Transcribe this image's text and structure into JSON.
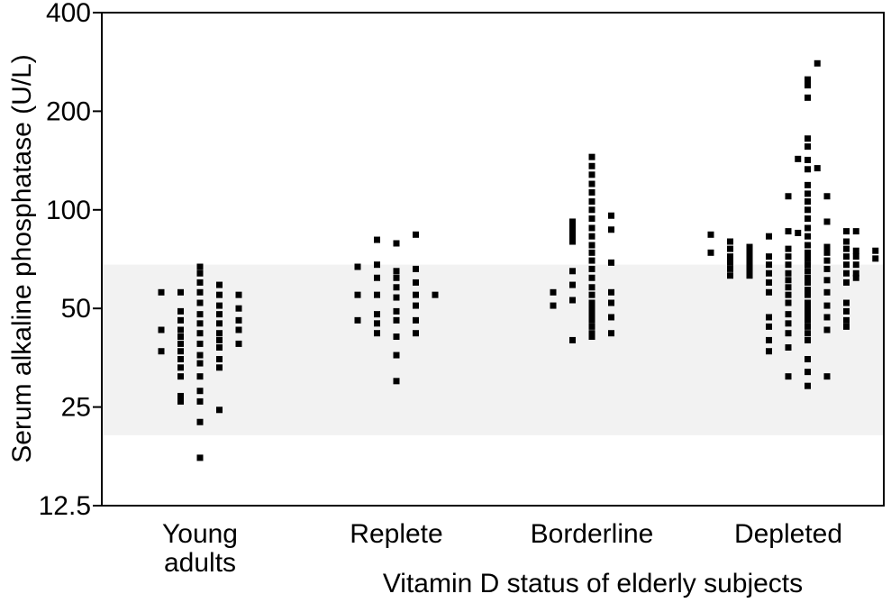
{
  "chart_data": {
    "type": "scatter",
    "y_scale": "log2",
    "ylim": [
      12.5,
      400
    ],
    "yticks": [
      12.5,
      25,
      50,
      100,
      200,
      400
    ],
    "ytick_labels": [
      "12.5",
      "25",
      "50",
      "100",
      "200",
      "400"
    ],
    "ylabel": "Serum alkaline phosphatase (U/L)",
    "xlabel": "Vitamin D status of elderly subjects",
    "categories": [
      "Young adults",
      "Replete",
      "Borderline",
      "Depleted"
    ],
    "category_labels": [
      [
        "Young",
        "adults"
      ],
      [
        "Replete"
      ],
      [
        "Borderline"
      ],
      [
        "Depleted"
      ]
    ],
    "reference_band": [
      20.5,
      68
    ],
    "colors": {
      "points": "#000000",
      "band": "#f2f2f2",
      "axes": "#000000"
    },
    "series": [
      {
        "category": "Young adults",
        "points": [
          {
            "dx": -2,
            "y": 56
          },
          {
            "dx": -2,
            "y": 43
          },
          {
            "dx": -2,
            "y": 37
          },
          {
            "dx": -1,
            "y": 56
          },
          {
            "dx": -1,
            "y": 49
          },
          {
            "dx": -1,
            "y": 46
          },
          {
            "dx": -1,
            "y": 43
          },
          {
            "dx": -1,
            "y": 41
          },
          {
            "dx": -1,
            "y": 39
          },
          {
            "dx": -1,
            "y": 37
          },
          {
            "dx": -1,
            "y": 35
          },
          {
            "dx": -1,
            "y": 33
          },
          {
            "dx": -1,
            "y": 31
          },
          {
            "dx": -1,
            "y": 27
          },
          {
            "dx": -1,
            "y": 26
          },
          {
            "dx": 0,
            "y": 67
          },
          {
            "dx": 0,
            "y": 64
          },
          {
            "dx": 0,
            "y": 60
          },
          {
            "dx": 0,
            "y": 56
          },
          {
            "dx": 0,
            "y": 52
          },
          {
            "dx": 0,
            "y": 48
          },
          {
            "dx": 0,
            "y": 45
          },
          {
            "dx": 0,
            "y": 42
          },
          {
            "dx": 0,
            "y": 39
          },
          {
            "dx": 0,
            "y": 36
          },
          {
            "dx": 0,
            "y": 34
          },
          {
            "dx": 0,
            "y": 31
          },
          {
            "dx": 0,
            "y": 28
          },
          {
            "dx": 0,
            "y": 26
          },
          {
            "dx": 0,
            "y": 22.5
          },
          {
            "dx": 0,
            "y": 17.5
          },
          {
            "dx": 1,
            "y": 59
          },
          {
            "dx": 1,
            "y": 55
          },
          {
            "dx": 1,
            "y": 51
          },
          {
            "dx": 1,
            "y": 48
          },
          {
            "dx": 1,
            "y": 45
          },
          {
            "dx": 1,
            "y": 42
          },
          {
            "dx": 1,
            "y": 40
          },
          {
            "dx": 1,
            "y": 38
          },
          {
            "dx": 1,
            "y": 35
          },
          {
            "dx": 1,
            "y": 33
          },
          {
            "dx": 1,
            "y": 24.5
          },
          {
            "dx": 2,
            "y": 55
          },
          {
            "dx": 2,
            "y": 50
          },
          {
            "dx": 2,
            "y": 46
          },
          {
            "dx": 2,
            "y": 43
          },
          {
            "dx": 2,
            "y": 39
          }
        ]
      },
      {
        "category": "Replete",
        "points": [
          {
            "dx": -2,
            "y": 67
          },
          {
            "dx": -2,
            "y": 55
          },
          {
            "dx": -2,
            "y": 46
          },
          {
            "dx": -1,
            "y": 81
          },
          {
            "dx": -1,
            "y": 68
          },
          {
            "dx": -1,
            "y": 62
          },
          {
            "dx": -1,
            "y": 55
          },
          {
            "dx": -1,
            "y": 48
          },
          {
            "dx": -1,
            "y": 45
          },
          {
            "dx": -1,
            "y": 42
          },
          {
            "dx": 0,
            "y": 79
          },
          {
            "dx": 0,
            "y": 65
          },
          {
            "dx": 0,
            "y": 62
          },
          {
            "dx": 0,
            "y": 58
          },
          {
            "dx": 0,
            "y": 54
          },
          {
            "dx": 0,
            "y": 49
          },
          {
            "dx": 0,
            "y": 46
          },
          {
            "dx": 0,
            "y": 41
          },
          {
            "dx": 0,
            "y": 36
          },
          {
            "dx": 0,
            "y": 30
          },
          {
            "dx": 1,
            "y": 84
          },
          {
            "dx": 1,
            "y": 66
          },
          {
            "dx": 1,
            "y": 60
          },
          {
            "dx": 1,
            "y": 55
          },
          {
            "dx": 1,
            "y": 51
          },
          {
            "dx": 1,
            "y": 46
          },
          {
            "dx": 1,
            "y": 42
          },
          {
            "dx": 2,
            "y": 55
          }
        ]
      },
      {
        "category": "Borderline",
        "points": [
          {
            "dx": -2,
            "y": 56
          },
          {
            "dx": -2,
            "y": 51
          },
          {
            "dx": -1,
            "y": 65
          },
          {
            "dx": -1,
            "y": 59
          },
          {
            "dx": -1,
            "y": 53
          },
          {
            "dx": -1,
            "y": 40
          },
          {
            "dx": -1,
            "y": 92
          },
          {
            "dx": -1,
            "y": 89
          },
          {
            "dx": -1,
            "y": 87
          },
          {
            "dx": -1,
            "y": 84
          },
          {
            "dx": -1,
            "y": 82
          },
          {
            "dx": -1,
            "y": 80
          },
          {
            "dx": 0,
            "y": 145
          },
          {
            "dx": 0,
            "y": 136
          },
          {
            "dx": 0,
            "y": 128
          },
          {
            "dx": 0,
            "y": 120
          },
          {
            "dx": 0,
            "y": 113
          },
          {
            "dx": 0,
            "y": 106
          },
          {
            "dx": 0,
            "y": 100
          },
          {
            "dx": 0,
            "y": 94
          },
          {
            "dx": 0,
            "y": 88
          },
          {
            "dx": 0,
            "y": 83
          },
          {
            "dx": 0,
            "y": 78
          },
          {
            "dx": 0,
            "y": 74
          },
          {
            "dx": 0,
            "y": 70
          },
          {
            "dx": 0,
            "y": 66
          },
          {
            "dx": 0,
            "y": 62
          },
          {
            "dx": 0,
            "y": 58
          },
          {
            "dx": 0,
            "y": 55
          },
          {
            "dx": 0,
            "y": 52
          },
          {
            "dx": 0,
            "y": 50
          },
          {
            "dx": 0,
            "y": 48
          },
          {
            "dx": 0,
            "y": 46
          },
          {
            "dx": 0,
            "y": 44
          },
          {
            "dx": 0,
            "y": 42
          },
          {
            "dx": 0,
            "y": 41
          },
          {
            "dx": 1,
            "y": 96
          },
          {
            "dx": 1,
            "y": 87
          },
          {
            "dx": 1,
            "y": 69
          },
          {
            "dx": 1,
            "y": 56
          },
          {
            "dx": 1,
            "y": 52
          },
          {
            "dx": 1,
            "y": 47
          },
          {
            "dx": 1,
            "y": 42
          }
        ]
      },
      {
        "category": "Depleted",
        "points": [
          {
            "dx": -4,
            "y": 84
          },
          {
            "dx": -4,
            "y": 74
          },
          {
            "dx": -3,
            "y": 80
          },
          {
            "dx": -3,
            "y": 76
          },
          {
            "dx": -3,
            "y": 72
          },
          {
            "dx": -3,
            "y": 69
          },
          {
            "dx": -3,
            "y": 66
          },
          {
            "dx": -3,
            "y": 63
          },
          {
            "dx": -2,
            "y": 77
          },
          {
            "dx": -2,
            "y": 74
          },
          {
            "dx": -2,
            "y": 72
          },
          {
            "dx": -2,
            "y": 69
          },
          {
            "dx": -2,
            "y": 67
          },
          {
            "dx": -2,
            "y": 65
          },
          {
            "dx": -2,
            "y": 63
          },
          {
            "dx": -1,
            "y": 83
          },
          {
            "dx": -1,
            "y": 72
          },
          {
            "dx": -1,
            "y": 68
          },
          {
            "dx": -1,
            "y": 64
          },
          {
            "dx": -1,
            "y": 60
          },
          {
            "dx": -1,
            "y": 56
          },
          {
            "dx": -1,
            "y": 47
          },
          {
            "dx": -1,
            "y": 44
          },
          {
            "dx": -1,
            "y": 40
          },
          {
            "dx": -1,
            "y": 37
          },
          {
            "dx": 0,
            "y": 110
          },
          {
            "dx": 0,
            "y": 86
          },
          {
            "dx": 0,
            "y": 76
          },
          {
            "dx": 0,
            "y": 72
          },
          {
            "dx": 0,
            "y": 68
          },
          {
            "dx": 0,
            "y": 64
          },
          {
            "dx": 0,
            "y": 61
          },
          {
            "dx": 0,
            "y": 58
          },
          {
            "dx": 0,
            "y": 55
          },
          {
            "dx": 0,
            "y": 52
          },
          {
            "dx": 0,
            "y": 48
          },
          {
            "dx": 0,
            "y": 45
          },
          {
            "dx": 0,
            "y": 42
          },
          {
            "dx": 0,
            "y": 38
          },
          {
            "dx": 0,
            "y": 31
          },
          {
            "dx": 1,
            "y": 250
          },
          {
            "dx": 1,
            "y": 240
          },
          {
            "dx": 1,
            "y": 220
          },
          {
            "dx": 1,
            "y": 165
          },
          {
            "dx": 1,
            "y": 156
          },
          {
            "dx": 1,
            "y": 142
          },
          {
            "dx": 1,
            "y": 133
          },
          {
            "dx": 1,
            "y": 119
          },
          {
            "dx": 1,
            "y": 112
          },
          {
            "dx": 1,
            "y": 106
          },
          {
            "dx": 1,
            "y": 100
          },
          {
            "dx": 1,
            "y": 94
          },
          {
            "dx": 1,
            "y": 88
          },
          {
            "dx": 1,
            "y": 83
          },
          {
            "dx": 1,
            "y": 78
          },
          {
            "dx": 1,
            "y": 74
          },
          {
            "dx": 1,
            "y": 71
          },
          {
            "dx": 1,
            "y": 68
          },
          {
            "dx": 1,
            "y": 65
          },
          {
            "dx": 1,
            "y": 62
          },
          {
            "dx": 1,
            "y": 60
          },
          {
            "dx": 1,
            "y": 57
          },
          {
            "dx": 1,
            "y": 55
          },
          {
            "dx": 1,
            "y": 52
          },
          {
            "dx": 1,
            "y": 50
          },
          {
            "dx": 1,
            "y": 48
          },
          {
            "dx": 1,
            "y": 46
          },
          {
            "dx": 1,
            "y": 44
          },
          {
            "dx": 1,
            "y": 42
          },
          {
            "dx": 1,
            "y": 40
          },
          {
            "dx": 1,
            "y": 35
          },
          {
            "dx": 1,
            "y": 32
          },
          {
            "dx": 1,
            "y": 29
          },
          {
            "dx": 0.5,
            "y": 143
          },
          {
            "dx": 0.5,
            "y": 85
          },
          {
            "dx": 1.5,
            "y": 280
          },
          {
            "dx": 1.5,
            "y": 134
          },
          {
            "dx": 2,
            "y": 110
          },
          {
            "dx": 2,
            "y": 92
          },
          {
            "dx": 2,
            "y": 77
          },
          {
            "dx": 2,
            "y": 74
          },
          {
            "dx": 2,
            "y": 70
          },
          {
            "dx": 2,
            "y": 66
          },
          {
            "dx": 2,
            "y": 61
          },
          {
            "dx": 2,
            "y": 56
          },
          {
            "dx": 2,
            "y": 51
          },
          {
            "dx": 2,
            "y": 47
          },
          {
            "dx": 2,
            "y": 43
          },
          {
            "dx": 2,
            "y": 31
          },
          {
            "dx": 3,
            "y": 86
          },
          {
            "dx": 3,
            "y": 80
          },
          {
            "dx": 3,
            "y": 76
          },
          {
            "dx": 3,
            "y": 72
          },
          {
            "dx": 3,
            "y": 68
          },
          {
            "dx": 3,
            "y": 64
          },
          {
            "dx": 3,
            "y": 60
          },
          {
            "dx": 3,
            "y": 52
          },
          {
            "dx": 3,
            "y": 49
          },
          {
            "dx": 3,
            "y": 46
          },
          {
            "dx": 3,
            "y": 44
          },
          {
            "dx": 3.5,
            "y": 86
          },
          {
            "dx": 3.5,
            "y": 75
          },
          {
            "dx": 3.5,
            "y": 72
          },
          {
            "dx": 3.5,
            "y": 68
          },
          {
            "dx": 3.5,
            "y": 64
          },
          {
            "dx": 3.5,
            "y": 62
          },
          {
            "dx": 4.5,
            "y": 75
          },
          {
            "dx": 4.5,
            "y": 71
          }
        ]
      }
    ]
  }
}
